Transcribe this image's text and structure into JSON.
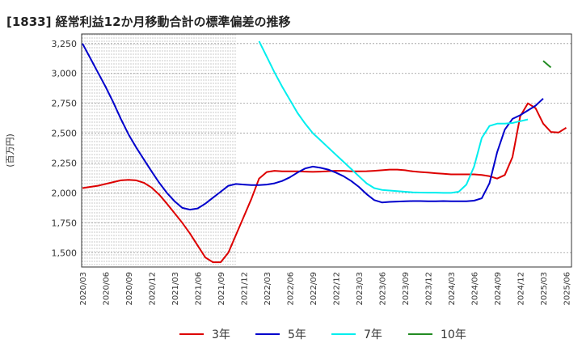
{
  "chart_data": {
    "type": "line",
    "title": "[1833]  経常利益12か月移動合計の標準偏差の推移",
    "ylabel": "(百万円)",
    "xlabel": "",
    "ylim": [
      1380,
      3330
    ],
    "yticks": [
      1500,
      1750,
      2000,
      2250,
      2500,
      2750,
      3000,
      3250
    ],
    "ytick_labels": [
      "1,500",
      "1,750",
      "2,000",
      "2,250",
      "2,500",
      "2,750",
      "3,000",
      "3,250"
    ],
    "xtick_labels": [
      "2020/03",
      "2020/06",
      "2020/09",
      "2020/12",
      "2021/03",
      "2021/06",
      "2021/09",
      "2021/12",
      "2022/03",
      "2022/06",
      "2022/09",
      "2022/12",
      "2023/03",
      "2023/06",
      "2023/09",
      "2023/12",
      "2024/03",
      "2024/06",
      "2024/09",
      "2024/12",
      "2025/03",
      "2025/06"
    ],
    "grid": true,
    "legend_position": "bottom",
    "series": [
      {
        "name": "3年",
        "color": "#dd0000",
        "start_index": 0,
        "values": [
          2040,
          2050,
          2060,
          2075,
          2090,
          2105,
          2110,
          2105,
          2085,
          2045,
          1985,
          1910,
          1830,
          1750,
          1660,
          1560,
          1460,
          1420,
          1420,
          1500,
          1650,
          1800,
          1950,
          2120,
          2175,
          2185,
          2180,
          2180,
          2180,
          2178,
          2176,
          2178,
          2182,
          2186,
          2185,
          2180,
          2180,
          2182,
          2185,
          2190,
          2195,
          2195,
          2190,
          2180,
          2175,
          2170,
          2165,
          2160,
          2155,
          2155,
          2155,
          2155,
          2150,
          2140,
          2120,
          2150,
          2300,
          2640,
          2750,
          2710,
          2580,
          2510,
          2505,
          2545
        ]
      },
      {
        "name": "5年",
        "color": "#0000cc",
        "start_index": 0,
        "values": [
          3250,
          3130,
          3010,
          2890,
          2760,
          2620,
          2490,
          2380,
          2280,
          2180,
          2085,
          2000,
          1930,
          1875,
          1860,
          1870,
          1910,
          1960,
          2010,
          2060,
          2075,
          2070,
          2065,
          2065,
          2070,
          2080,
          2100,
          2130,
          2170,
          2205,
          2220,
          2210,
          2195,
          2170,
          2140,
          2100,
          2050,
          1990,
          1940,
          1920,
          1925,
          1928,
          1930,
          1932,
          1932,
          1930,
          1930,
          1932,
          1930,
          1930,
          1930,
          1935,
          1955,
          2080,
          2340,
          2530,
          2620,
          2650,
          2690,
          2730,
          2790
        ]
      },
      {
        "name": "7年",
        "color": "#00eeee",
        "start_index": 23,
        "values": [
          3270,
          3140,
          3010,
          2890,
          2780,
          2670,
          2580,
          2500,
          2440,
          2380,
          2320,
          2260,
          2200,
          2140,
          2080,
          2040,
          2025,
          2020,
          2015,
          2010,
          2005,
          2003,
          2002,
          2002,
          2000,
          2000,
          2010,
          2070,
          2220,
          2460,
          2560,
          2580,
          2580,
          2585,
          2600,
          2615
        ]
      },
      {
        "name": "10年",
        "color": "#228b22",
        "start_index": 60,
        "values": [
          3105,
          3050
        ]
      }
    ]
  }
}
